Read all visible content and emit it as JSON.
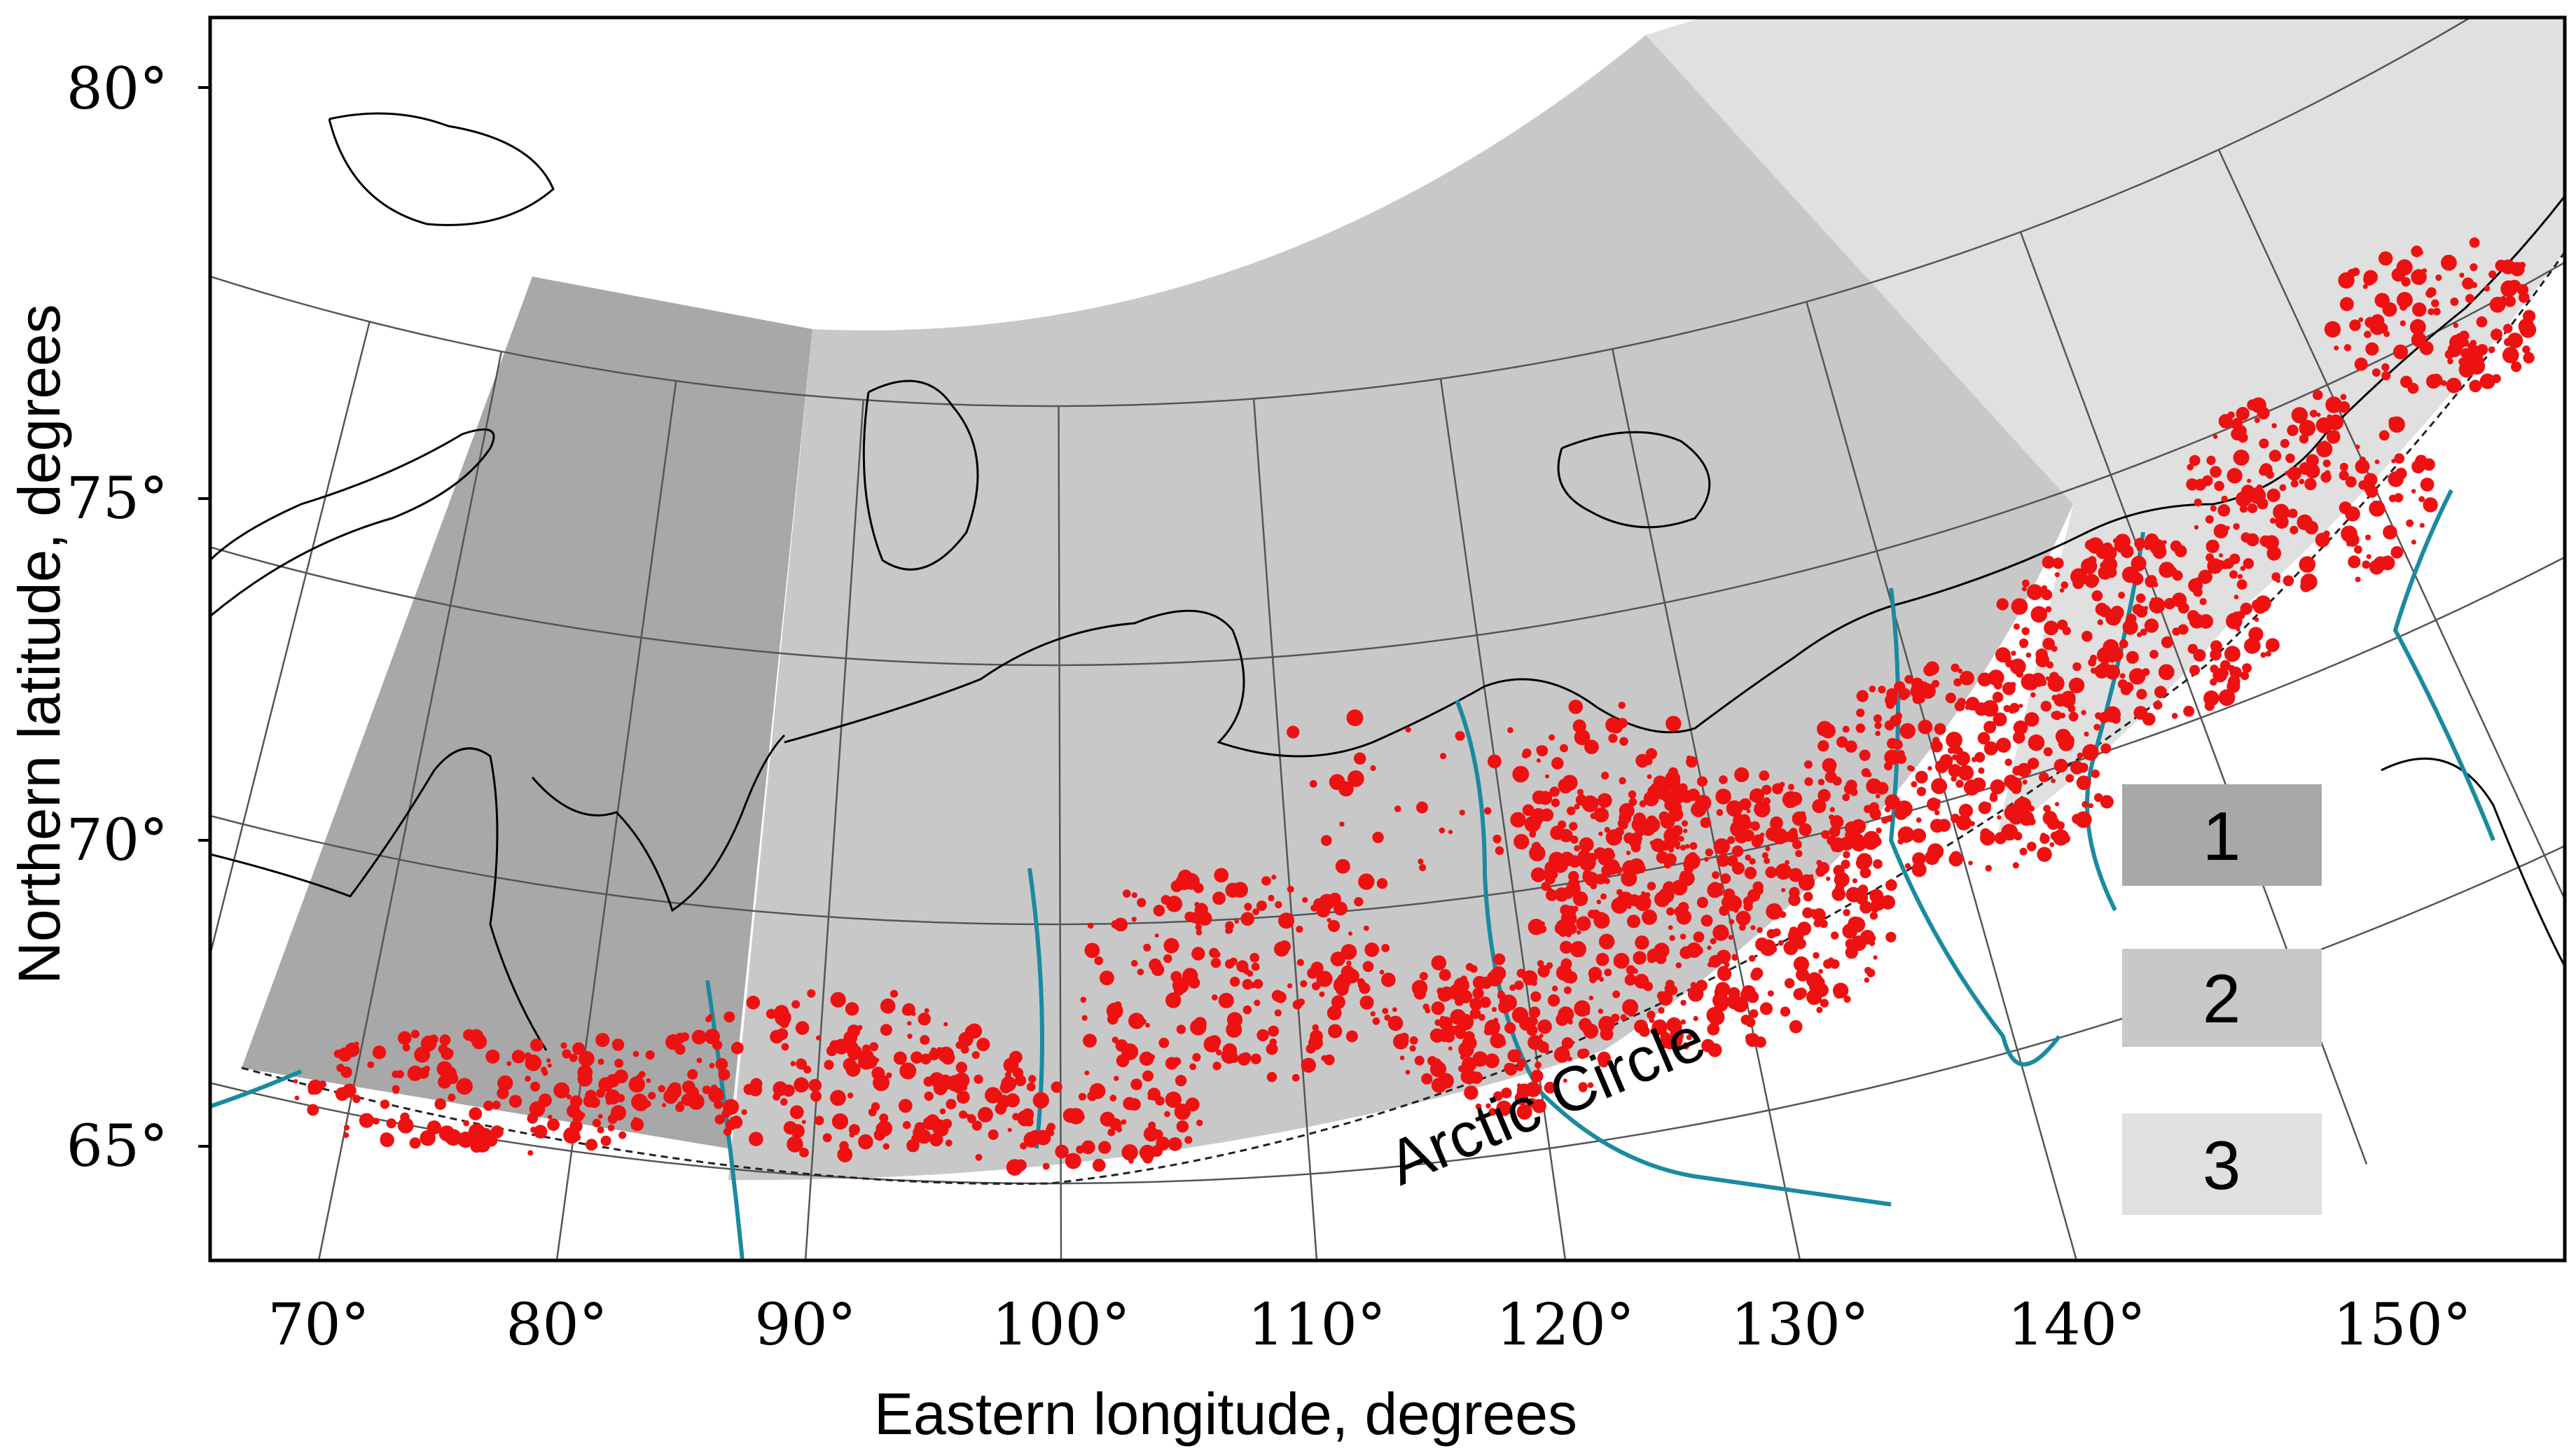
{
  "axes": {
    "x_title": "Eastern longitude, degrees",
    "y_title": "Northern latitude, degrees",
    "x_ticks": [
      "70°",
      "80°",
      "90°",
      "100°",
      "110°",
      "120°",
      "130°",
      "140°",
      "150°"
    ],
    "y_ticks": [
      "65°",
      "70°",
      "75°",
      "80°"
    ]
  },
  "legend": [
    {
      "label": "1",
      "color": "#a8a8a8"
    },
    {
      "label": "2",
      "color": "#c8c8c8"
    },
    {
      "label": "3",
      "color": "#e0e0e0"
    }
  ],
  "annotations": {
    "arctic_circle": "Arctic   Circle"
  },
  "colors": {
    "fire": "#ee1111",
    "river": "#1a8aa0",
    "lake": "#4a6ee0",
    "coast": "#000000",
    "graticule": "#555555"
  }
}
